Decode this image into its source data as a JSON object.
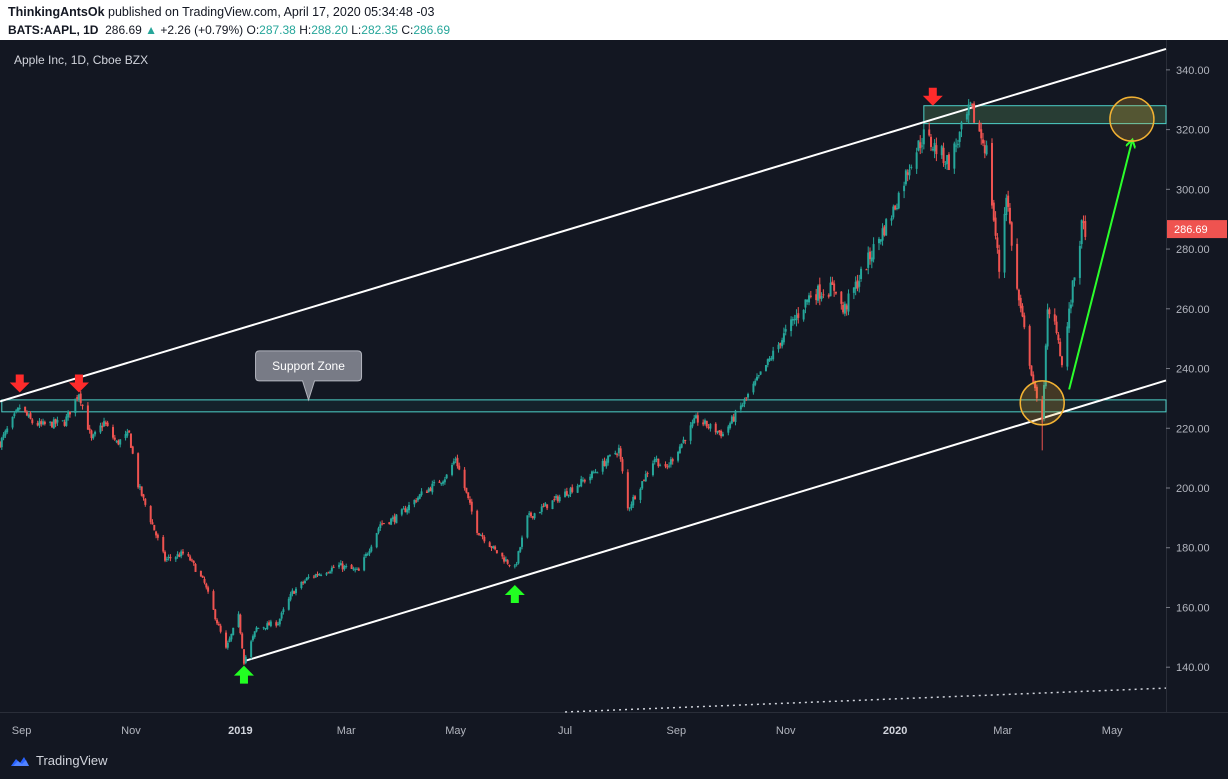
{
  "header": {
    "author": "ThinkingAntsOk",
    "published": "published on TradingView.com, April 17, 2020 05:34:48 -03",
    "symbol": "BATS:AAPL, 1D",
    "last": "286.69",
    "change_arrow": "▲",
    "change": "+2.26 (+0.79%)",
    "o_label": "O:",
    "o_val": "287.38",
    "h_label": "H:",
    "h_val": "288.20",
    "l_label": "L:",
    "l_val": "282.35",
    "c_label": "C:",
    "c_val": "286.69"
  },
  "chart_title": "Apple Inc, 1D, Cboe BZX",
  "support_label": "Support Zone",
  "price_tag": "286.69",
  "footer": {
    "brand": "TradingView",
    "logo_icon": "tradingview-logo-icon"
  },
  "colors": {
    "bg": "#131722",
    "up": "#26a69a",
    "down": "#ef5350",
    "channel": "#ffffff",
    "zone": "#4dd0c8",
    "arrow_down": "#ff2b2b",
    "arrow_up": "#22ff22",
    "target": "#2bff2b",
    "circle": "#f2b233"
  },
  "chart_data": {
    "type": "candlestick",
    "title": "Apple Inc, 1D, Cboe BZX",
    "y_ticks": [
      140,
      160,
      180,
      200,
      220,
      240,
      260,
      280,
      300,
      320,
      340
    ],
    "y_range": [
      125,
      350
    ],
    "x_labels": [
      "Sep",
      "Nov",
      "2019",
      "Mar",
      "May",
      "Jul",
      "Sep",
      "Nov",
      "2020",
      "Mar",
      "May"
    ],
    "x_label_dates": [
      "2018-09-01",
      "2018-11-01",
      "2019-01-01",
      "2019-03-01",
      "2019-05-01",
      "2019-07-01",
      "2019-09-01",
      "2019-11-01",
      "2020-01-01",
      "2020-03-01",
      "2020-05-01"
    ],
    "x_range": [
      "2018-08-20",
      "2020-05-31"
    ],
    "price_path": [
      {
        "d": "2018-08-20",
        "p": 215
      },
      {
        "d": "2018-08-31",
        "p": 227
      },
      {
        "d": "2018-09-07",
        "p": 222
      },
      {
        "d": "2018-09-12",
        "p": 221
      },
      {
        "d": "2018-09-25",
        "p": 222
      },
      {
        "d": "2018-10-03",
        "p": 232
      },
      {
        "d": "2018-10-10",
        "p": 216
      },
      {
        "d": "2018-10-17",
        "p": 222
      },
      {
        "d": "2018-10-24",
        "p": 215
      },
      {
        "d": "2018-10-31",
        "p": 218
      },
      {
        "d": "2018-11-05",
        "p": 201
      },
      {
        "d": "2018-11-14",
        "p": 186
      },
      {
        "d": "2018-11-20",
        "p": 176
      },
      {
        "d": "2018-11-30",
        "p": 178
      },
      {
        "d": "2018-12-04",
        "p": 176
      },
      {
        "d": "2018-12-12",
        "p": 168
      },
      {
        "d": "2018-12-24",
        "p": 146
      },
      {
        "d": "2018-12-31",
        "p": 157
      },
      {
        "d": "2019-01-03",
        "p": 142
      },
      {
        "d": "2019-01-10",
        "p": 153
      },
      {
        "d": "2019-01-22",
        "p": 155
      },
      {
        "d": "2019-01-30",
        "p": 165
      },
      {
        "d": "2019-02-08",
        "p": 170
      },
      {
        "d": "2019-02-25",
        "p": 174
      },
      {
        "d": "2019-03-08",
        "p": 172
      },
      {
        "d": "2019-03-20",
        "p": 188
      },
      {
        "d": "2019-03-29",
        "p": 190
      },
      {
        "d": "2019-04-12",
        "p": 198
      },
      {
        "d": "2019-04-26",
        "p": 204
      },
      {
        "d": "2019-05-01",
        "p": 210
      },
      {
        "d": "2019-05-13",
        "p": 186
      },
      {
        "d": "2019-05-23",
        "p": 179
      },
      {
        "d": "2019-06-03",
        "p": 173
      },
      {
        "d": "2019-06-10",
        "p": 190
      },
      {
        "d": "2019-06-28",
        "p": 197
      },
      {
        "d": "2019-07-15",
        "p": 204
      },
      {
        "d": "2019-07-31",
        "p": 213
      },
      {
        "d": "2019-08-05",
        "p": 193
      },
      {
        "d": "2019-08-20",
        "p": 210
      },
      {
        "d": "2019-08-26",
        "p": 206
      },
      {
        "d": "2019-09-12",
        "p": 223
      },
      {
        "d": "2019-09-27",
        "p": 218
      },
      {
        "d": "2019-10-10",
        "p": 230
      },
      {
        "d": "2019-10-28",
        "p": 248
      },
      {
        "d": "2019-11-15",
        "p": 265
      },
      {
        "d": "2019-11-29",
        "p": 267
      },
      {
        "d": "2019-12-03",
        "p": 259
      },
      {
        "d": "2019-12-20",
        "p": 280
      },
      {
        "d": "2019-12-31",
        "p": 293
      },
      {
        "d": "2020-01-10",
        "p": 310
      },
      {
        "d": "2020-01-17",
        "p": 318
      },
      {
        "d": "2020-01-31",
        "p": 309
      },
      {
        "d": "2020-02-12",
        "p": 327
      },
      {
        "d": "2020-02-21",
        "p": 313
      },
      {
        "d": "2020-02-28",
        "p": 273
      },
      {
        "d": "2020-03-03",
        "p": 299
      },
      {
        "d": "2020-03-09",
        "p": 266
      },
      {
        "d": "2020-03-16",
        "p": 242
      },
      {
        "d": "2020-03-20",
        "p": 229
      },
      {
        "d": "2020-03-23",
        "p": 224
      },
      {
        "d": "2020-03-26",
        "p": 258
      },
      {
        "d": "2020-03-31",
        "p": 254
      },
      {
        "d": "2020-04-03",
        "p": 241
      },
      {
        "d": "2020-04-09",
        "p": 267
      },
      {
        "d": "2020-04-14",
        "p": 287
      },
      {
        "d": "2020-04-16",
        "p": 286.69
      }
    ],
    "channel_upper": [
      {
        "d": "2018-08-20",
        "p": 229
      },
      {
        "d": "2020-05-31",
        "p": 347
      }
    ],
    "channel_lower": [
      {
        "d": "2019-01-03",
        "p": 142
      },
      {
        "d": "2020-05-31",
        "p": 236
      }
    ],
    "support_zone": {
      "from": "2018-08-21",
      "to": "2020-05-31",
      "low": 225.5,
      "high": 229.5
    },
    "resistance_zone": {
      "from": "2020-01-17",
      "to": "2020-05-31",
      "low": 322,
      "high": 328
    },
    "target": {
      "from": {
        "d": "2020-04-07",
        "p": 233
      },
      "to": {
        "d": "2020-05-12",
        "p": 316
      }
    },
    "circles": [
      {
        "d": "2020-03-23",
        "p": 228.5
      },
      {
        "d": "2020-05-12",
        "p": 323.5
      }
    ],
    "down_arrows": [
      {
        "d": "2018-08-31",
        "p": 235
      },
      {
        "d": "2018-10-03",
        "p": 235
      },
      {
        "d": "2020-01-22",
        "p": 331
      }
    ],
    "up_arrows": [
      {
        "d": "2019-01-03",
        "p": 137.5
      },
      {
        "d": "2019-06-03",
        "p": 164.5
      }
    ],
    "dotted_line": [
      {
        "d": "2019-07-01",
        "p": 125
      },
      {
        "d": "2020-05-31",
        "p": 133
      }
    ],
    "last_price": 286.69
  }
}
